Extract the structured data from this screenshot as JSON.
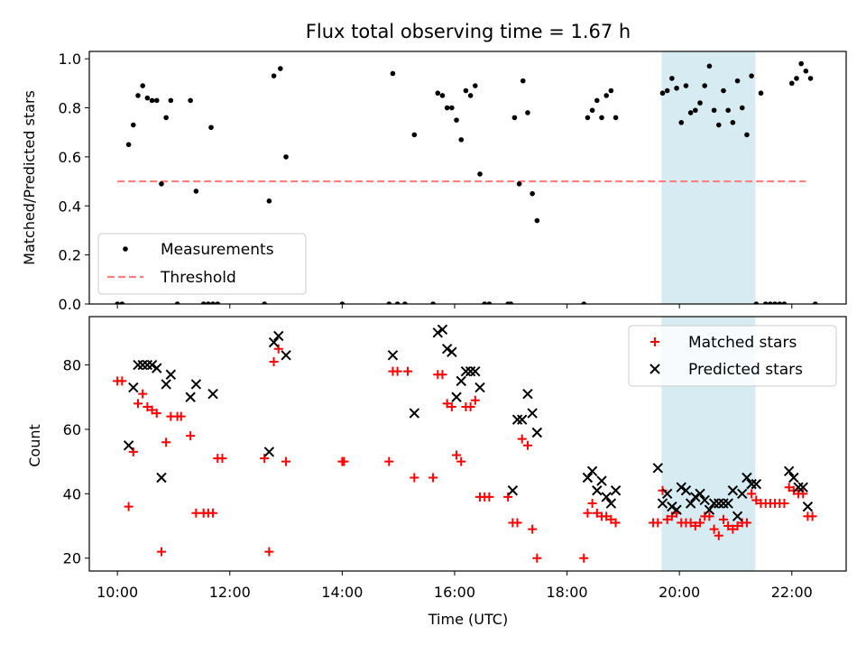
{
  "chart_data": [
    {
      "type": "scatter",
      "title": "Flux total observing time = 1.67 h",
      "ylabel": "Matched/Predicted stars",
      "xlabel": "",
      "xlim": [
        "09:30",
        "22:58"
      ],
      "ylim": [
        0.0,
        1.03
      ],
      "yticks": [
        "0.0",
        "0.2",
        "0.4",
        "0.6",
        "0.8",
        "1.0"
      ],
      "xticks": [
        "10:00",
        "12:00",
        "14:00",
        "16:00",
        "18:00",
        "20:00",
        "22:00"
      ],
      "grid": false,
      "legend_position": "lower-left",
      "highlight_span": {
        "from": "19:41",
        "to": "21:21",
        "color": "#add8e6"
      },
      "threshold": {
        "name": "Threshold",
        "y": 0.5,
        "from": "10:00",
        "to": "22:15",
        "color": "#ff7f7f"
      },
      "series": [
        {
          "name": "Measurements",
          "color": "#000000",
          "points": [
            [
              "10:00",
              0.0
            ],
            [
              "10:05",
              0.0
            ],
            [
              "10:12",
              0.65
            ],
            [
              "10:17",
              0.73
            ],
            [
              "10:22",
              0.85
            ],
            [
              "10:27",
              0.89
            ],
            [
              "10:32",
              0.84
            ],
            [
              "10:37",
              0.83
            ],
            [
              "10:42",
              0.83
            ],
            [
              "10:47",
              0.49
            ],
            [
              "10:52",
              0.76
            ],
            [
              "10:57",
              0.83
            ],
            [
              "11:04",
              0.0
            ],
            [
              "11:18",
              0.83
            ],
            [
              "11:24",
              0.46
            ],
            [
              "11:32",
              0.0
            ],
            [
              "11:37",
              0.0
            ],
            [
              "11:40",
              0.72
            ],
            [
              "11:42",
              0.0
            ],
            [
              "11:47",
              0.0
            ],
            [
              "12:37",
              0.0
            ],
            [
              "12:42",
              0.42
            ],
            [
              "12:47",
              0.93
            ],
            [
              "12:54",
              0.96
            ],
            [
              "13:00",
              0.6
            ],
            [
              "14:00",
              0.0
            ],
            [
              "14:50",
              0.0
            ],
            [
              "14:54",
              0.94
            ],
            [
              "14:59",
              0.0
            ],
            [
              "15:07",
              0.0
            ],
            [
              "15:17",
              0.69
            ],
            [
              "15:37",
              0.0
            ],
            [
              "15:42",
              0.86
            ],
            [
              "15:47",
              0.85
            ],
            [
              "15:52",
              0.8
            ],
            [
              "15:57",
              0.8
            ],
            [
              "16:02",
              0.75
            ],
            [
              "16:07",
              0.67
            ],
            [
              "16:12",
              0.87
            ],
            [
              "16:17",
              0.85
            ],
            [
              "16:22",
              0.89
            ],
            [
              "16:27",
              0.53
            ],
            [
              "16:32",
              0.0
            ],
            [
              "16:37",
              0.0
            ],
            [
              "16:57",
              0.0
            ],
            [
              "17:00",
              0.0
            ],
            [
              "17:04",
              0.76
            ],
            [
              "17:09",
              0.49
            ],
            [
              "17:13",
              0.91
            ],
            [
              "17:18",
              0.78
            ],
            [
              "17:23",
              0.45
            ],
            [
              "17:28",
              0.34
            ],
            [
              "18:18",
              0.0
            ],
            [
              "18:22",
              0.76
            ],
            [
              "18:27",
              0.79
            ],
            [
              "18:32",
              0.83
            ],
            [
              "18:37",
              0.76
            ],
            [
              "18:42",
              0.85
            ],
            [
              "18:47",
              0.87
            ],
            [
              "18:52",
              0.76
            ],
            [
              "19:42",
              0.86
            ],
            [
              "19:47",
              0.87
            ],
            [
              "19:52",
              0.92
            ],
            [
              "19:57",
              0.88
            ],
            [
              "20:02",
              0.74
            ],
            [
              "20:07",
              0.89
            ],
            [
              "20:12",
              0.78
            ],
            [
              "20:17",
              0.79
            ],
            [
              "20:22",
              0.82
            ],
            [
              "20:27",
              0.89
            ],
            [
              "20:32",
              0.97
            ],
            [
              "20:37",
              0.79
            ],
            [
              "20:42",
              0.73
            ],
            [
              "20:47",
              0.87
            ],
            [
              "20:52",
              0.79
            ],
            [
              "20:57",
              0.74
            ],
            [
              "21:02",
              0.91
            ],
            [
              "21:07",
              0.8
            ],
            [
              "21:12",
              0.69
            ],
            [
              "21:17",
              0.93
            ],
            [
              "21:22",
              0.0
            ],
            [
              "21:27",
              0.86
            ],
            [
              "21:32",
              0.0
            ],
            [
              "21:37",
              0.0
            ],
            [
              "21:42",
              0.0
            ],
            [
              "21:47",
              0.0
            ],
            [
              "21:52",
              0.0
            ],
            [
              "22:00",
              0.9
            ],
            [
              "22:05",
              0.92
            ],
            [
              "22:10",
              0.98
            ],
            [
              "22:15",
              0.95
            ],
            [
              "22:20",
              0.92
            ],
            [
              "22:25",
              0.0
            ]
          ]
        }
      ]
    },
    {
      "type": "scatter",
      "title": "",
      "ylabel": "Count",
      "xlabel": "Time (UTC)",
      "xlim": [
        "09:30",
        "22:58"
      ],
      "ylim": [
        16,
        95
      ],
      "yticks": [
        "20",
        "40",
        "60",
        "80"
      ],
      "xticks": [
        "10:00",
        "12:00",
        "14:00",
        "16:00",
        "18:00",
        "20:00",
        "22:00"
      ],
      "grid": false,
      "legend_position": "top-right",
      "highlight_span": {
        "from": "19:41",
        "to": "21:21",
        "color": "#add8e6"
      },
      "series": [
        {
          "name": "Matched stars",
          "color": "#ff0000",
          "marker": "plus",
          "points": [
            [
              "10:00",
              75
            ],
            [
              "10:05",
              75
            ],
            [
              "10:12",
              36
            ],
            [
              "10:17",
              53
            ],
            [
              "10:22",
              68
            ],
            [
              "10:27",
              71
            ],
            [
              "10:32",
              67
            ],
            [
              "10:37",
              66
            ],
            [
              "10:42",
              65
            ],
            [
              "10:47",
              22
            ],
            [
              "10:52",
              56
            ],
            [
              "10:57",
              64
            ],
            [
              "11:04",
              64
            ],
            [
              "11:08",
              64
            ],
            [
              "11:18",
              58
            ],
            [
              "11:24",
              34
            ],
            [
              "11:32",
              34
            ],
            [
              "11:37",
              34
            ],
            [
              "11:42",
              34
            ],
            [
              "11:47",
              51
            ],
            [
              "11:52",
              51
            ],
            [
              "12:37",
              51
            ],
            [
              "12:42",
              22
            ],
            [
              "12:47",
              81
            ],
            [
              "12:52",
              85
            ],
            [
              "13:00",
              50
            ],
            [
              "14:00",
              50
            ],
            [
              "14:02",
              50
            ],
            [
              "14:50",
              50
            ],
            [
              "14:54",
              78
            ],
            [
              "14:59",
              78
            ],
            [
              "15:10",
              78
            ],
            [
              "15:17",
              45
            ],
            [
              "15:37",
              45
            ],
            [
              "15:42",
              77
            ],
            [
              "15:47",
              77
            ],
            [
              "15:52",
              68
            ],
            [
              "15:57",
              67
            ],
            [
              "16:02",
              52
            ],
            [
              "16:07",
              50
            ],
            [
              "16:12",
              67
            ],
            [
              "16:17",
              67
            ],
            [
              "16:22",
              69
            ],
            [
              "16:27",
              39
            ],
            [
              "16:32",
              39
            ],
            [
              "16:37",
              39
            ],
            [
              "16:57",
              39
            ],
            [
              "17:02",
              31
            ],
            [
              "17:07",
              31
            ],
            [
              "17:12",
              57
            ],
            [
              "17:18",
              55
            ],
            [
              "17:23",
              29
            ],
            [
              "17:28",
              20
            ],
            [
              "18:18",
              20
            ],
            [
              "18:22",
              34
            ],
            [
              "18:27",
              37
            ],
            [
              "18:32",
              34
            ],
            [
              "18:37",
              33
            ],
            [
              "18:42",
              33
            ],
            [
              "18:47",
              32
            ],
            [
              "18:52",
              31
            ],
            [
              "19:32",
              31
            ],
            [
              "19:37",
              31
            ],
            [
              "19:42",
              41
            ],
            [
              "19:47",
              32
            ],
            [
              "19:52",
              33
            ],
            [
              "19:57",
              34
            ],
            [
              "20:02",
              31
            ],
            [
              "20:07",
              31
            ],
            [
              "20:12",
              31
            ],
            [
              "20:17",
              30
            ],
            [
              "20:22",
              31
            ],
            [
              "20:27",
              33
            ],
            [
              "20:32",
              33
            ],
            [
              "20:37",
              29
            ],
            [
              "20:42",
              27
            ],
            [
              "20:47",
              32
            ],
            [
              "20:52",
              30
            ],
            [
              "20:57",
              29
            ],
            [
              "21:02",
              30
            ],
            [
              "21:07",
              31
            ],
            [
              "21:12",
              31
            ],
            [
              "21:17",
              40
            ],
            [
              "21:22",
              38
            ],
            [
              "21:27",
              37
            ],
            [
              "21:32",
              37
            ],
            [
              "21:37",
              37
            ],
            [
              "21:42",
              37
            ],
            [
              "21:47",
              37
            ],
            [
              "21:52",
              37
            ],
            [
              "21:57",
              42
            ],
            [
              "22:02",
              41
            ],
            [
              "22:07",
              40
            ],
            [
              "22:12",
              40
            ],
            [
              "22:17",
              33
            ],
            [
              "22:22",
              33
            ]
          ]
        },
        {
          "name": "Predicted stars",
          "color": "#000000",
          "marker": "x",
          "points": [
            [
              "10:12",
              55
            ],
            [
              "10:17",
              73
            ],
            [
              "10:22",
              80
            ],
            [
              "10:27",
              80
            ],
            [
              "10:32",
              80
            ],
            [
              "10:37",
              80
            ],
            [
              "10:42",
              79
            ],
            [
              "10:47",
              45
            ],
            [
              "10:52",
              74
            ],
            [
              "10:57",
              77
            ],
            [
              "11:18",
              70
            ],
            [
              "11:24",
              74
            ],
            [
              "11:42",
              71
            ],
            [
              "12:42",
              53
            ],
            [
              "12:47",
              87
            ],
            [
              "12:52",
              89
            ],
            [
              "13:00",
              83
            ],
            [
              "14:54",
              83
            ],
            [
              "15:17",
              65
            ],
            [
              "15:42",
              90
            ],
            [
              "15:47",
              91
            ],
            [
              "15:52",
              85
            ],
            [
              "15:57",
              84
            ],
            [
              "16:02",
              70
            ],
            [
              "16:07",
              75
            ],
            [
              "16:12",
              78
            ],
            [
              "16:17",
              78
            ],
            [
              "16:22",
              78
            ],
            [
              "16:27",
              73
            ],
            [
              "17:02",
              41
            ],
            [
              "17:07",
              63
            ],
            [
              "17:12",
              63
            ],
            [
              "17:18",
              71
            ],
            [
              "17:23",
              65
            ],
            [
              "17:28",
              59
            ],
            [
              "18:22",
              45
            ],
            [
              "18:27",
              47
            ],
            [
              "18:32",
              41
            ],
            [
              "18:37",
              44
            ],
            [
              "18:42",
              39
            ],
            [
              "18:47",
              37
            ],
            [
              "18:52",
              41
            ],
            [
              "19:37",
              48
            ],
            [
              "19:42",
              37
            ],
            [
              "19:47",
              40
            ],
            [
              "19:52",
              36
            ],
            [
              "19:57",
              35
            ],
            [
              "20:02",
              42
            ],
            [
              "20:07",
              41
            ],
            [
              "20:12",
              37
            ],
            [
              "20:17",
              39
            ],
            [
              "20:22",
              40
            ],
            [
              "20:27",
              38
            ],
            [
              "20:32",
              35
            ],
            [
              "20:37",
              37
            ],
            [
              "20:42",
              37
            ],
            [
              "20:47",
              37
            ],
            [
              "20:52",
              37
            ],
            [
              "20:57",
              41
            ],
            [
              "21:02",
              33
            ],
            [
              "21:07",
              40
            ],
            [
              "21:12",
              45
            ],
            [
              "21:17",
              43
            ],
            [
              "21:22",
              43
            ],
            [
              "21:57",
              47
            ],
            [
              "22:02",
              45
            ],
            [
              "22:07",
              42
            ],
            [
              "22:12",
              42
            ],
            [
              "22:17",
              36
            ]
          ]
        }
      ]
    }
  ]
}
